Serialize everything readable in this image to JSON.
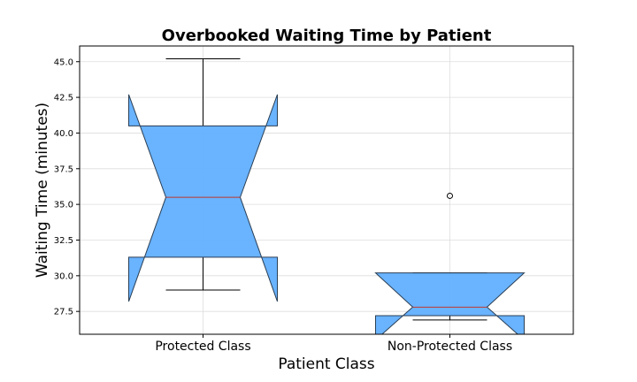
{
  "chart_data": {
    "type": "box",
    "title": "Overbooked Waiting Time by Patient",
    "xlabel": "Patient Class",
    "ylabel": "Waiting Time (minutes)",
    "categories": [
      "Protected Class",
      "Non-Protected Class"
    ],
    "ylim": [
      25.9,
      46.1
    ],
    "yticks": [
      27.5,
      30.0,
      32.5,
      35.0,
      37.5,
      40.0,
      42.5,
      45.0
    ],
    "ytick_labels": [
      "27.5",
      "30.0",
      "32.5",
      "35.0",
      "37.5",
      "40.0",
      "42.5",
      "45.0"
    ],
    "grid": true,
    "notched": true,
    "box_color": "#61afff",
    "median_color": "#c0392b",
    "boxes": [
      {
        "label": "Protected Class",
        "whisker_low": 29.0,
        "q1": 31.3,
        "median": 35.5,
        "q3": 40.5,
        "whisker_high": 45.2,
        "notch_low": 28.2,
        "notch_high": 42.7,
        "outliers": []
      },
      {
        "label": "Non-Protected Class",
        "whisker_low": 26.9,
        "q1": 27.2,
        "median": 27.8,
        "q3": 30.2,
        "whisker_high": 30.2,
        "notch_low": 25.5,
        "notch_high": 30.2,
        "outliers": [
          35.6
        ]
      }
    ]
  }
}
